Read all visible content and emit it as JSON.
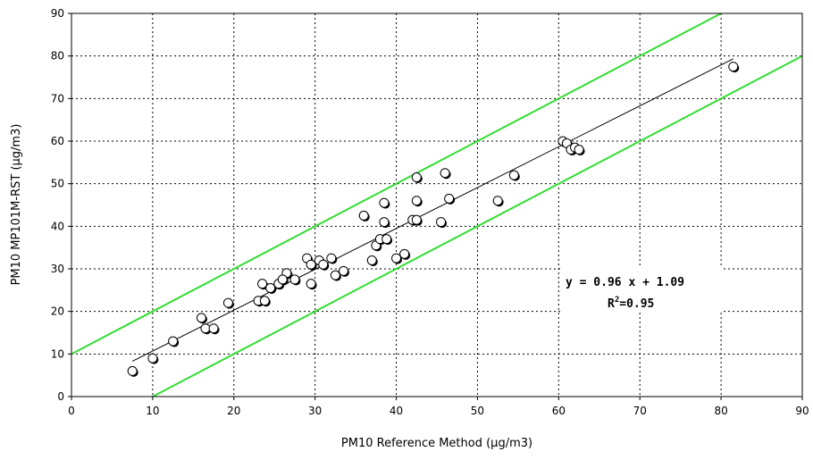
{
  "chart_data": {
    "type": "scatter",
    "xlabel": "PM10 Reference Method (µg/m3)",
    "ylabel": "PM10 MP101M-RST (µg/m3)",
    "xlim": [
      0,
      90
    ],
    "ylim": [
      0,
      90
    ],
    "xticks": [
      0,
      10,
      20,
      30,
      40,
      50,
      60,
      70,
      80,
      90
    ],
    "yticks": [
      0,
      10,
      20,
      30,
      40,
      50,
      60,
      70,
      80,
      90
    ],
    "grid": true,
    "points": [
      [
        7.5,
        6.0
      ],
      [
        10.0,
        9.0
      ],
      [
        12.5,
        13.0
      ],
      [
        16.0,
        18.5
      ],
      [
        16.5,
        16.0
      ],
      [
        17.5,
        16.0
      ],
      [
        19.3,
        22.0
      ],
      [
        23.0,
        22.5
      ],
      [
        23.5,
        26.5
      ],
      [
        23.8,
        22.5
      ],
      [
        24.5,
        25.5
      ],
      [
        25.5,
        26.5
      ],
      [
        26.5,
        29.0
      ],
      [
        26.0,
        27.5
      ],
      [
        27.5,
        27.5
      ],
      [
        29.0,
        32.5
      ],
      [
        29.5,
        26.5
      ],
      [
        29.5,
        31.0
      ],
      [
        30.5,
        32.0
      ],
      [
        31.0,
        31.0
      ],
      [
        32.0,
        32.5
      ],
      [
        32.5,
        28.5
      ],
      [
        33.5,
        29.5
      ],
      [
        36.0,
        42.5
      ],
      [
        37.0,
        32.0
      ],
      [
        37.5,
        35.5
      ],
      [
        38.0,
        37.0
      ],
      [
        38.5,
        41.0
      ],
      [
        38.5,
        45.5
      ],
      [
        38.8,
        37.0
      ],
      [
        40.0,
        32.5
      ],
      [
        41.0,
        33.5
      ],
      [
        42.0,
        41.5
      ],
      [
        42.5,
        41.5
      ],
      [
        42.5,
        51.5
      ],
      [
        42.5,
        46.0
      ],
      [
        45.5,
        41.0
      ],
      [
        46.0,
        52.5
      ],
      [
        46.5,
        46.5
      ],
      [
        52.5,
        46.0
      ],
      [
        54.5,
        52.0
      ],
      [
        60.5,
        60.0
      ],
      [
        61.0,
        59.5
      ],
      [
        61.5,
        58.0
      ],
      [
        62.0,
        58.5
      ],
      [
        62.5,
        58.0
      ],
      [
        81.5,
        77.5
      ]
    ],
    "regression": {
      "slope": 0.96,
      "intercept": 1.09,
      "x_range": [
        7.5,
        81.5
      ]
    },
    "bands": [
      {
        "slope": 1.0,
        "intercept": 10,
        "color": "#33dd33"
      },
      {
        "slope": 1.0,
        "intercept": -10,
        "color": "#33dd33"
      }
    ],
    "equation_text": "y = 0.96 x + 1.09",
    "r2_text": "R2=0.95"
  }
}
